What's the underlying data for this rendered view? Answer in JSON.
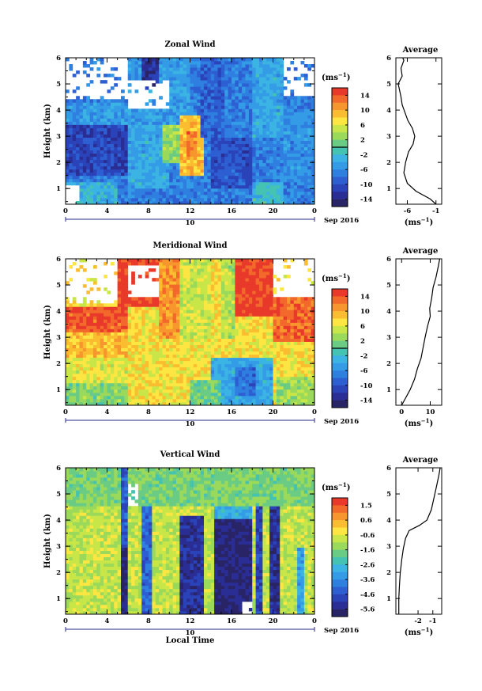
{
  "chart_data": [
    {
      "type": "heatmap",
      "title": "Zonal Wind",
      "ylabel": "Height (km)",
      "xlabel": "",
      "xticks": [
        "0",
        "4",
        "8",
        "12",
        "16",
        "20",
        "0"
      ],
      "xlim": [
        0,
        24
      ],
      "yticks": [
        "1",
        "2",
        "3",
        "4",
        "5",
        "6"
      ],
      "ylim": [
        0.4,
        6
      ],
      "date_label": "10",
      "month_label": "Sep 2016",
      "colorbar": {
        "unit": "(ms⁻¹)",
        "ticks": [
          "14",
          "10",
          "6",
          "2",
          "-2",
          "-6",
          "-10",
          "-14"
        ],
        "colors": [
          "#e8392b",
          "#f2692b",
          "#f7962d",
          "#fbbd30",
          "#fde642",
          "#c9e648",
          "#9ad95a",
          "#6acb84",
          "#44c2b2",
          "#3bb4e4",
          "#349ce6",
          "#2f7fe0",
          "#2d5fd2",
          "#2b43b9",
          "#2a2e94",
          "#292466"
        ],
        "zero_line_after": 7
      },
      "regions": [
        {
          "x": [
            0,
            24
          ],
          "y": [
            0.4,
            6
          ],
          "v": -7
        },
        {
          "x": [
            0,
            6
          ],
          "y": [
            1.5,
            3.5
          ],
          "v": -11
        },
        {
          "x": [
            0,
            6
          ],
          "y": [
            3.5,
            4.3
          ],
          "v": -5
        },
        {
          "x": [
            0,
            5
          ],
          "y": [
            0.4,
            1.2
          ],
          "v": -3
        },
        {
          "x": [
            6,
            10
          ],
          "y": [
            1,
            3.5
          ],
          "v": -4
        },
        {
          "x": [
            6,
            12
          ],
          "y": [
            3.5,
            6
          ],
          "v": -5
        },
        {
          "x": [
            9.5,
            11.5
          ],
          "y": [
            2,
            3.5
          ],
          "v": 3
        },
        {
          "x": [
            11,
            13.5
          ],
          "y": [
            1.5,
            3.8
          ],
          "v": 9
        },
        {
          "x": [
            11.8,
            12.8
          ],
          "y": [
            2.2,
            3.2
          ],
          "v": 12
        },
        {
          "x": [
            13,
            15.5
          ],
          "y": [
            3,
            6
          ],
          "v": -9
        },
        {
          "x": [
            14,
            18
          ],
          "y": [
            1,
            3
          ],
          "v": -10
        },
        {
          "x": [
            18,
            21
          ],
          "y": [
            3,
            6
          ],
          "v": -4
        },
        {
          "x": [
            18,
            21
          ],
          "y": [
            0.4,
            1.2
          ],
          "v": -2
        },
        {
          "x": [
            21,
            24
          ],
          "y": [
            1.2,
            4
          ],
          "v": -6
        },
        {
          "x": [
            7.5,
            9
          ],
          "y": [
            4.8,
            6
          ],
          "v": -13
        }
      ],
      "missing": [
        {
          "x": [
            0,
            6
          ],
          "y": [
            4.4,
            6
          ]
        },
        {
          "x": [
            6,
            10
          ],
          "y": [
            4,
            5.2
          ]
        },
        {
          "x": [
            21,
            24
          ],
          "y": [
            4.6,
            6
          ]
        },
        {
          "x": [
            0,
            1.5
          ],
          "y": [
            0.4,
            1.1
          ]
        }
      ],
      "average_profile": {
        "title": "Average",
        "xlabel": "(ms⁻¹)",
        "xticks": [
          "-6",
          "-1"
        ],
        "xlim": [
          -8,
          0
        ],
        "points": [
          [
            -1,
            0.4
          ],
          [
            -2,
            0.6
          ],
          [
            -4.5,
            0.9
          ],
          [
            -6,
            1.2
          ],
          [
            -6.6,
            1.6
          ],
          [
            -6.3,
            2.0
          ],
          [
            -5.8,
            2.4
          ],
          [
            -5,
            2.7
          ],
          [
            -4.7,
            3.0
          ],
          [
            -5.1,
            3.3
          ],
          [
            -5.9,
            3.6
          ],
          [
            -6.4,
            3.9
          ],
          [
            -6.9,
            4.2
          ],
          [
            -7.1,
            4.5
          ],
          [
            -7.4,
            4.8
          ],
          [
            -7.6,
            5.0
          ],
          [
            -6.9,
            5.3
          ],
          [
            -7.1,
            5.6
          ],
          [
            -6.6,
            5.9
          ],
          [
            -6.8,
            6.0
          ]
        ]
      }
    },
    {
      "type": "heatmap",
      "title": "Meridional Wind",
      "ylabel": "Height (km)",
      "xlabel": "",
      "xticks": [
        "0",
        "4",
        "8",
        "12",
        "16",
        "20",
        "0"
      ],
      "xlim": [
        0,
        24
      ],
      "yticks": [
        "1",
        "2",
        "3",
        "4",
        "5",
        "6"
      ],
      "ylim": [
        0.4,
        6
      ],
      "date_label": "10",
      "month_label": "Sep 2016",
      "colorbar": {
        "unit": "(ms⁻¹)",
        "ticks": [
          "14",
          "10",
          "6",
          "2",
          "-2",
          "-6",
          "-10",
          "-14"
        ],
        "colors": [
          "#e8392b",
          "#f2692b",
          "#f7962d",
          "#fbbd30",
          "#fde642",
          "#c9e648",
          "#9ad95a",
          "#6acb84",
          "#44c2b2",
          "#3bb4e4",
          "#349ce6",
          "#2f7fe0",
          "#2d5fd2",
          "#2b43b9",
          "#2a2e94",
          "#292466"
        ],
        "zero_line_after": 7
      },
      "regions": [
        {
          "x": [
            0,
            24
          ],
          "y": [
            0.4,
            6
          ],
          "v": 7
        },
        {
          "x": [
            0,
            6
          ],
          "y": [
            3.2,
            4.2
          ],
          "v": 14
        },
        {
          "x": [
            0,
            6
          ],
          "y": [
            2.2,
            3.2
          ],
          "v": 9
        },
        {
          "x": [
            0,
            6
          ],
          "y": [
            1.2,
            2.2
          ],
          "v": 6
        },
        {
          "x": [
            0,
            6
          ],
          "y": [
            0.4,
            1.2
          ],
          "v": 2
        },
        {
          "x": [
            5,
            9.5
          ],
          "y": [
            4.2,
            6
          ],
          "v": 15
        },
        {
          "x": [
            9,
            11
          ],
          "y": [
            3,
            6
          ],
          "v": 11
        },
        {
          "x": [
            11,
            14
          ],
          "y": [
            3,
            6
          ],
          "v": 5
        },
        {
          "x": [
            15,
            16.5
          ],
          "y": [
            3,
            6
          ],
          "v": 4
        },
        {
          "x": [
            16.5,
            20
          ],
          "y": [
            3.8,
            6
          ],
          "v": 15
        },
        {
          "x": [
            20,
            24
          ],
          "y": [
            2.8,
            4.5
          ],
          "v": 13
        },
        {
          "x": [
            14,
            20
          ],
          "y": [
            0.4,
            2.2
          ],
          "v": -4
        },
        {
          "x": [
            16.5,
            18.5
          ],
          "y": [
            0.8,
            1.8
          ],
          "v": -8
        },
        {
          "x": [
            12,
            15
          ],
          "y": [
            0.4,
            1.4
          ],
          "v": 1
        },
        {
          "x": [
            20.5,
            24
          ],
          "y": [
            0.4,
            1.5
          ],
          "v": 3
        }
      ],
      "missing": [
        {
          "x": [
            0,
            5
          ],
          "y": [
            4.3,
            6
          ]
        },
        {
          "x": [
            6,
            9
          ],
          "y": [
            4.6,
            5.7
          ]
        },
        {
          "x": [
            20,
            24
          ],
          "y": [
            4.5,
            6
          ]
        }
      ],
      "average_profile": {
        "title": "Average",
        "xlabel": "(ms⁻¹)",
        "xticks": [
          "0",
          "10"
        ],
        "xlim": [
          -2,
          14
        ],
        "points": [
          [
            0,
            0.4
          ],
          [
            1.5,
            0.7
          ],
          [
            3,
            1.0
          ],
          [
            4.5,
            1.4
          ],
          [
            5.5,
            1.8
          ],
          [
            6.8,
            2.2
          ],
          [
            7.5,
            2.6
          ],
          [
            8.2,
            3.0
          ],
          [
            9,
            3.4
          ],
          [
            10,
            3.8
          ],
          [
            9.8,
            4.1
          ],
          [
            10.5,
            4.5
          ],
          [
            11,
            4.9
          ],
          [
            12,
            5.3
          ],
          [
            12.8,
            5.7
          ],
          [
            13.3,
            6.0
          ]
        ]
      }
    },
    {
      "type": "heatmap",
      "title": "Vertical Wind",
      "ylabel": "Height (km)",
      "xlabel": "Local Time",
      "xticks": [
        "0",
        "4",
        "8",
        "12",
        "16",
        "20",
        "0"
      ],
      "xlim": [
        0,
        24
      ],
      "yticks": [
        "1",
        "2",
        "3",
        "4",
        "5",
        "6"
      ],
      "ylim": [
        0.4,
        6
      ],
      "date_label": "10",
      "month_label": "Sep 2016",
      "colorbar": {
        "unit": "(ms⁻¹)",
        "ticks": [
          "1.5",
          "0.6",
          "-0.6",
          "-1.6",
          "-2.6",
          "-3.6",
          "-4.6",
          "-5.6"
        ],
        "colors": [
          "#e8392b",
          "#f2692b",
          "#f7962d",
          "#fbbd30",
          "#fde642",
          "#c9e648",
          "#9ad95a",
          "#6acb84",
          "#44c2b2",
          "#3bb4e4",
          "#349ce6",
          "#2f7fe0",
          "#2d5fd2",
          "#2b43b9",
          "#2a2e94",
          "#292466"
        ]
      },
      "regions": [
        {
          "x": [
            0,
            24
          ],
          "y": [
            0.4,
            6
          ],
          "v": -0.9
        },
        {
          "x": [
            0,
            24
          ],
          "y": [
            4.6,
            6
          ],
          "v": -1.6
        },
        {
          "x": [
            5.3,
            6
          ],
          "y": [
            0.4,
            6
          ],
          "v": -4.5
        },
        {
          "x": [
            5.5,
            5.9
          ],
          "y": [
            0.4,
            3
          ],
          "v": -5.6
        },
        {
          "x": [
            7.5,
            8.2
          ],
          "y": [
            0.4,
            4.5
          ],
          "v": -4.2
        },
        {
          "x": [
            11,
            13.3
          ],
          "y": [
            0.4,
            4.2
          ],
          "v": -5.2
        },
        {
          "x": [
            14.5,
            18
          ],
          "y": [
            0.4,
            4
          ],
          "v": -5.6
        },
        {
          "x": [
            14.5,
            18
          ],
          "y": [
            4,
            4.6
          ],
          "v": -3
        },
        {
          "x": [
            18.3,
            19
          ],
          "y": [
            0.4,
            4.6
          ],
          "v": -4.8
        },
        {
          "x": [
            19.6,
            20.6
          ],
          "y": [
            0.4,
            4.5
          ],
          "v": -5.4
        },
        {
          "x": [
            22.5,
            23
          ],
          "y": [
            0.4,
            3
          ],
          "v": -3.2
        }
      ],
      "missing": [
        {
          "x": [
            17,
            18
          ],
          "y": [
            0.4,
            0.9
          ]
        },
        {
          "x": [
            6,
            7
          ],
          "y": [
            4.6,
            5.4
          ]
        }
      ],
      "average_profile": {
        "title": "Average",
        "xlabel": "(ms⁻¹)",
        "xticks": [
          "-2",
          "-1"
        ],
        "xlim": [
          -3.5,
          -0.4
        ],
        "points": [
          [
            -3.3,
            0.4
          ],
          [
            -3.3,
            1.0
          ],
          [
            -3.25,
            1.6
          ],
          [
            -3.2,
            2.0
          ],
          [
            -3.1,
            2.5
          ],
          [
            -3.0,
            2.9
          ],
          [
            -2.85,
            3.3
          ],
          [
            -2.6,
            3.6
          ],
          [
            -1.9,
            3.8
          ],
          [
            -1.4,
            4.0
          ],
          [
            -1.1,
            4.4
          ],
          [
            -0.9,
            4.9
          ],
          [
            -0.75,
            5.3
          ],
          [
            -0.6,
            5.7
          ],
          [
            -0.5,
            6.0
          ]
        ]
      }
    }
  ]
}
